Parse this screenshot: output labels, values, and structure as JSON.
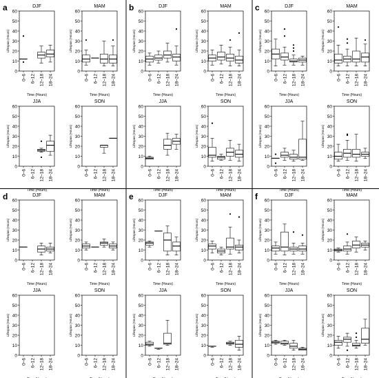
{
  "chart_data": {
    "type": "boxplot",
    "panel_labels": [
      "a",
      "b",
      "c",
      "d",
      "e",
      "f"
    ],
    "seasons": [
      "DJF",
      "MAM",
      "JJA",
      "SON"
    ],
    "categories": [
      "0–6",
      "6–12",
      "12–18",
      "18–24"
    ],
    "xlabel": "Time (Hours)",
    "ylabel": "Lifespan (Hours)",
    "ylim": [
      0,
      60
    ],
    "yticks": [
      0,
      10,
      20,
      30,
      40,
      50,
      60
    ],
    "panels": [
      {
        "label": "a",
        "subplots": [
          {
            "season": "DJF",
            "boxes": [
              {
                "q1": 12,
                "med": 12,
                "q3": 12,
                "lo": 12,
                "hi": 12,
                "out": [
                  35,
                  9
                ]
              },
              null,
              {
                "q1": 13,
                "med": 16,
                "q3": 19,
                "lo": 8,
                "hi": 25,
                "out": []
              },
              {
                "q1": 14,
                "med": 17,
                "q3": 21,
                "lo": 9,
                "hi": 26,
                "out": []
              }
            ]
          },
          {
            "season": "MAM",
            "boxes": [
              {
                "q1": 9,
                "med": 12,
                "q3": 16,
                "lo": 6,
                "hi": 21,
                "out": [
                  31
                ]
              },
              {
                "q1": 13,
                "med": 13,
                "q3": 13,
                "lo": 13,
                "hi": 13,
                "out": []
              },
              {
                "q1": 8,
                "med": 12,
                "q3": 17,
                "lo": 5,
                "hi": 30,
                "out": []
              },
              {
                "q1": 8,
                "med": 12,
                "q3": 16,
                "lo": 5,
                "hi": 25,
                "out": [
                  31
                ]
              }
            ]
          },
          {
            "season": "JJA",
            "boxes": [
              null,
              null,
              {
                "q1": 15,
                "med": 16,
                "q3": 17,
                "lo": 14,
                "hi": 18,
                "out": [
                  25,
                  9
                ]
              },
              {
                "q1": 15,
                "med": 21,
                "q3": 25,
                "lo": 11,
                "hi": 31,
                "out": []
              }
            ]
          },
          {
            "season": "SON",
            "boxes": [
              null,
              null,
              {
                "q1": 19,
                "med": 21,
                "q3": 21,
                "lo": 13,
                "hi": 21,
                "out": []
              },
              {
                "q1": 28,
                "med": 28,
                "q3": 28,
                "lo": 28,
                "hi": 28,
                "out": []
              }
            ]
          }
        ]
      },
      {
        "label": "b",
        "subplots": [
          {
            "season": "DJF",
            "boxes": [
              {
                "q1": 9,
                "med": 12,
                "q3": 15,
                "lo": 6,
                "hi": 18,
                "out": []
              },
              {
                "q1": 11,
                "med": 13,
                "q3": 16,
                "lo": 8,
                "hi": 20,
                "out": []
              },
              {
                "q1": 13,
                "med": 16,
                "q3": 20,
                "lo": 9,
                "hi": 28,
                "out": []
              },
              {
                "q1": 10,
                "med": 14,
                "q3": 17,
                "lo": 6,
                "hi": 25,
                "out": [
                  42
                ]
              }
            ]
          },
          {
            "season": "MAM",
            "boxes": [
              {
                "q1": 10,
                "med": 13,
                "q3": 16,
                "lo": 6,
                "hi": 21,
                "out": []
              },
              {
                "q1": 11,
                "med": 14,
                "q3": 19,
                "lo": 7,
                "hi": 26,
                "out": []
              },
              {
                "q1": 10,
                "med": 13,
                "q3": 17,
                "lo": 5,
                "hi": 24,
                "out": [
                  31
                ]
              },
              {
                "q1": 8,
                "med": 11,
                "q3": 15,
                "lo": 5,
                "hi": 21,
                "out": [
                  38
                ]
              }
            ]
          },
          {
            "season": "JJA",
            "boxes": [
              {
                "q1": 7,
                "med": 8,
                "q3": 9,
                "lo": 7,
                "hi": 10,
                "out": []
              },
              null,
              {
                "q1": 17,
                "med": 21,
                "q3": 27,
                "lo": 11,
                "hi": 33,
                "out": []
              },
              {
                "q1": 22,
                "med": 25,
                "q3": 28,
                "lo": 17,
                "hi": 32,
                "out": []
              }
            ]
          },
          {
            "season": "SON",
            "boxes": [
              {
                "q1": 9,
                "med": 11,
                "q3": 19,
                "lo": 5,
                "hi": 28,
                "out": [
                  43
                ]
              },
              {
                "q1": 7,
                "med": 9,
                "q3": 10,
                "lo": 6,
                "hi": 12,
                "out": []
              },
              {
                "q1": 10,
                "med": 14,
                "q3": 18,
                "lo": 6,
                "hi": 26,
                "out": []
              },
              {
                "q1": 9,
                "med": 12,
                "q3": 16,
                "lo": 5,
                "hi": 22,
                "out": []
              }
            ]
          }
        ]
      },
      {
        "label": "c",
        "subplots": [
          {
            "season": "DJF",
            "boxes": [
              {
                "q1": 12,
                "med": 17,
                "q3": 22,
                "lo": 5,
                "hi": 32,
                "out": []
              },
              {
                "q1": 11,
                "med": 14,
                "q3": 18,
                "lo": 6,
                "hi": 24,
                "out": [
                  42,
                  35
                ]
              },
              {
                "q1": 9,
                "med": 10,
                "q3": 12,
                "lo": 6,
                "hi": 16,
                "out": [
                  20,
                  23,
                  26
                ]
              },
              {
                "q1": 9,
                "med": 11,
                "q3": 13,
                "lo": 6,
                "hi": 15,
                "out": []
              }
            ]
          },
          {
            "season": "MAM",
            "boxes": [
              {
                "q1": 8,
                "med": 11,
                "q3": 17,
                "lo": 5,
                "hi": 26,
                "out": [
                  44
                ]
              },
              {
                "q1": 9,
                "med": 12,
                "q3": 15,
                "lo": 5,
                "hi": 22,
                "out": [
                  32,
                  28
                ]
              },
              {
                "q1": 9,
                "med": 12,
                "q3": 20,
                "lo": 5,
                "hi": 33,
                "out": []
              },
              {
                "q1": 9,
                "med": 14,
                "q3": 18,
                "lo": 5,
                "hi": 27,
                "out": [
                  31
                ]
              }
            ]
          },
          {
            "season": "JJA",
            "boxes": [
              {
                "q1": 8,
                "med": 8,
                "q3": 8,
                "lo": 8,
                "hi": 8,
                "out": [
                  12,
                  3
                ]
              },
              {
                "q1": 9,
                "med": 11,
                "q3": 14,
                "lo": 6,
                "hi": 18,
                "out": []
              },
              {
                "q1": 7,
                "med": 9,
                "q3": 12,
                "lo": 5,
                "hi": 16,
                "out": []
              },
              {
                "q1": 7,
                "med": 9,
                "q3": 27,
                "lo": 6,
                "hi": 45,
                "out": []
              }
            ]
          },
          {
            "season": "SON",
            "boxes": [
              {
                "q1": 7,
                "med": 10,
                "q3": 14,
                "lo": 5,
                "hi": 22,
                "out": []
              },
              {
                "q1": 9,
                "med": 13,
                "q3": 17,
                "lo": 6,
                "hi": 26,
                "out": [
                  31,
                  32
                ]
              },
              {
                "q1": 9,
                "med": 12,
                "q3": 17,
                "lo": 5,
                "hi": 32,
                "out": []
              },
              {
                "q1": 10,
                "med": 12,
                "q3": 14,
                "lo": 8,
                "hi": 18,
                "out": []
              }
            ]
          }
        ]
      },
      {
        "label": "d",
        "subplots": [
          {
            "season": "DJF",
            "boxes": [
              {
                "q1": 13,
                "med": 13,
                "q3": 13,
                "lo": 13,
                "hi": 13,
                "out": []
              },
              null,
              {
                "q1": 8,
                "med": 11,
                "q3": 14,
                "lo": 5,
                "hi": 17,
                "out": []
              },
              {
                "q1": 9,
                "med": 11,
                "q3": 13,
                "lo": 7,
                "hi": 17,
                "out": []
              }
            ]
          },
          {
            "season": "MAM",
            "boxes": [
              {
                "q1": 12,
                "med": 14,
                "q3": 16,
                "lo": 10,
                "hi": 18,
                "out": []
              },
              {
                "q1": 13,
                "med": 13,
                "q3": 13,
                "lo": 13,
                "hi": 13,
                "out": []
              },
              {
                "q1": 15,
                "med": 17,
                "q3": 18,
                "lo": 13,
                "hi": 21,
                "out": []
              },
              {
                "q1": 12,
                "med": 14,
                "q3": 16,
                "lo": 10,
                "hi": 18,
                "out": []
              }
            ]
          },
          {
            "season": "JJA",
            "boxes": [
              null,
              null,
              null,
              null
            ]
          },
          {
            "season": "SON",
            "boxes": [
              null,
              null,
              null,
              null
            ]
          }
        ]
      },
      {
        "label": "e",
        "subplots": [
          {
            "season": "DJF",
            "boxes": [
              {
                "q1": 15,
                "med": 17,
                "q3": 18,
                "lo": 13,
                "hi": 19,
                "out": []
              },
              {
                "q1": 29,
                "med": 29,
                "q3": 29,
                "lo": 29,
                "hi": 29,
                "out": []
              },
              {
                "q1": 9,
                "med": 20,
                "q3": 27,
                "lo": 5,
                "hi": 34,
                "out": []
              },
              {
                "q1": 9,
                "med": 14,
                "q3": 18,
                "lo": 5,
                "hi": 23,
                "out": []
              }
            ]
          },
          {
            "season": "MAM",
            "boxes": [
              {
                "q1": 11,
                "med": 14,
                "q3": 16,
                "lo": 7,
                "hi": 19,
                "out": []
              },
              {
                "q1": 7,
                "med": 9,
                "q3": 11,
                "lo": 5,
                "hi": 13,
                "out": []
              },
              {
                "q1": 11,
                "med": 13,
                "q3": 22,
                "lo": 6,
                "hi": 33,
                "out": [
                  46
                ]
              },
              {
                "q1": 10,
                "med": 13,
                "q3": 15,
                "lo": 7,
                "hi": 20,
                "out": [
                  43
                ]
              }
            ]
          },
          {
            "season": "JJA",
            "boxes": [
              {
                "q1": 10,
                "med": 11,
                "q3": 13,
                "lo": 9,
                "hi": 14,
                "out": []
              },
              {
                "q1": 7,
                "med": 7,
                "q3": 7,
                "lo": 6,
                "hi": 7,
                "out": []
              },
              {
                "q1": 11,
                "med": 12,
                "q3": 22,
                "lo": 10,
                "hi": 35,
                "out": []
              },
              null
            ]
          },
          {
            "season": "SON",
            "boxes": [
              {
                "q1": 9,
                "med": 9,
                "q3": 9,
                "lo": 8,
                "hi": 9,
                "out": []
              },
              null,
              {
                "q1": 11,
                "med": 12,
                "q3": 13,
                "lo": 10,
                "hi": 14,
                "out": []
              },
              {
                "q1": 8,
                "med": 11,
                "q3": 15,
                "lo": 5,
                "hi": 19,
                "out": []
              }
            ]
          }
        ]
      },
      {
        "label": "f",
        "subplots": [
          {
            "season": "DJF",
            "boxes": [
              {
                "q1": 9,
                "med": 12,
                "q3": 14,
                "lo": 6,
                "hi": 18,
                "out": []
              },
              {
                "q1": 9,
                "med": 13,
                "q3": 28,
                "lo": 5,
                "hi": 36,
                "out": []
              },
              {
                "q1": 9,
                "med": 11,
                "q3": 13,
                "lo": 6,
                "hi": 17,
                "out": [
                  28
                ]
              },
              {
                "q1": 9,
                "med": 11,
                "q3": 14,
                "lo": 6,
                "hi": 17,
                "out": [
                  25
                ]
              }
            ]
          },
          {
            "season": "MAM",
            "boxes": [
              {
                "q1": 9,
                "med": 10,
                "q3": 11,
                "lo": 8,
                "hi": 12,
                "out": []
              },
              {
                "q1": 9,
                "med": 11,
                "q3": 14,
                "lo": 6,
                "hi": 18,
                "out": [
                  26
                ]
              },
              {
                "q1": 12,
                "med": 15,
                "q3": 19,
                "lo": 8,
                "hi": 23,
                "out": []
              },
              {
                "q1": 13,
                "med": 15,
                "q3": 17,
                "lo": 10,
                "hi": 19,
                "out": []
              }
            ]
          },
          {
            "season": "JJA",
            "boxes": [
              {
                "q1": 12,
                "med": 13,
                "q3": 14,
                "lo": 11,
                "hi": 15,
                "out": []
              },
              {
                "q1": 11,
                "med": 12,
                "q3": 14,
                "lo": 10,
                "hi": 15,
                "out": []
              },
              {
                "q1": 7,
                "med": 9,
                "q3": 12,
                "lo": 5,
                "hi": 15,
                "out": []
              },
              {
                "q1": 5,
                "med": 6,
                "q3": 7,
                "lo": 5,
                "hi": 8,
                "out": []
              }
            ]
          },
          {
            "season": "SON",
            "boxes": [
              {
                "q1": 10,
                "med": 13,
                "q3": 15,
                "lo": 7,
                "hi": 19,
                "out": []
              },
              {
                "q1": 13,
                "med": 16,
                "q3": 18,
                "lo": 9,
                "hi": 22,
                "out": [
                  5
                ]
              },
              {
                "q1": 9,
                "med": 10,
                "q3": 12,
                "lo": 7,
                "hi": 15,
                "out": [
                  18,
                  22
                ]
              },
              {
                "q1": 12,
                "med": 16,
                "q3": 27,
                "lo": 10,
                "hi": 36,
                "out": []
              }
            ]
          }
        ]
      }
    ]
  }
}
